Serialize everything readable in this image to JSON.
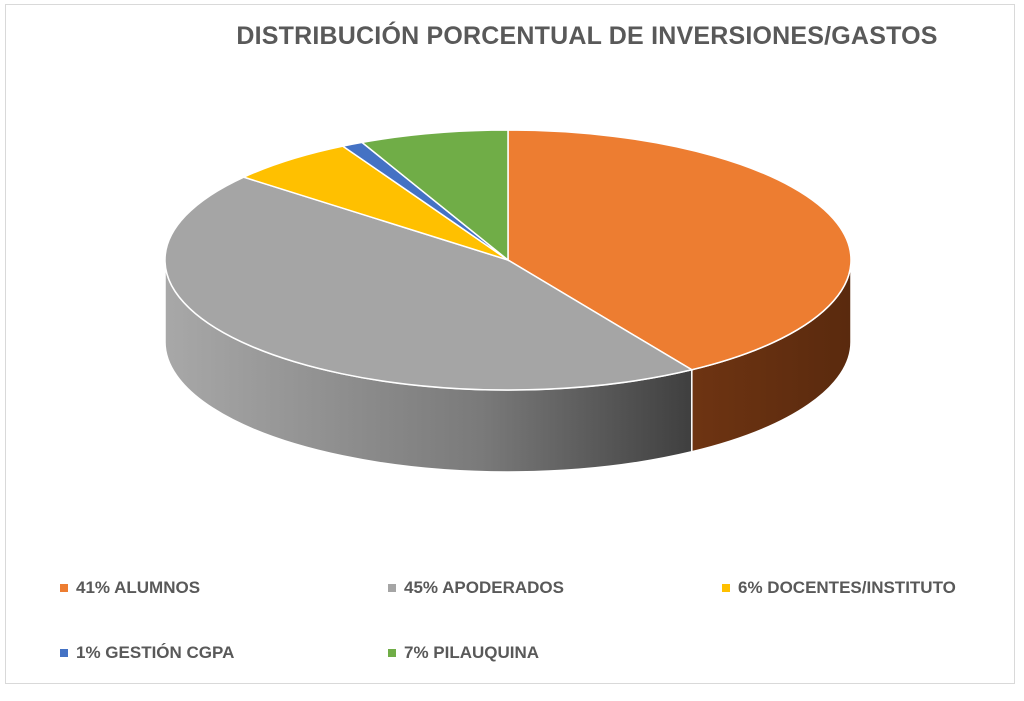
{
  "chart_data": {
    "type": "pie",
    "title": "DISTRIBUCIÓN PORCENTUAL DE INVERSIONES/GASTOS",
    "three_d": true,
    "legend_position": "bottom",
    "slices": [
      {
        "label": "41% ALUMNOS",
        "value": 41,
        "color": "#ED7D31",
        "side_color": "#7A3B12"
      },
      {
        "label": "45% APODERADOS",
        "value": 45,
        "color": "#A5A5A5",
        "side_color": "#6B6B6B"
      },
      {
        "label": "6% DOCENTES/INSTITUTO",
        "value": 6,
        "color": "#FFC000",
        "side_color": "#9C7500"
      },
      {
        "label": "1% GESTIÓN CGPA",
        "value": 1,
        "color": "#4472C4",
        "side_color": "#2A4A82"
      },
      {
        "label": "7% PILAUQUINA",
        "value": 7,
        "color": "#70AD47",
        "side_color": "#44702A"
      }
    ]
  }
}
